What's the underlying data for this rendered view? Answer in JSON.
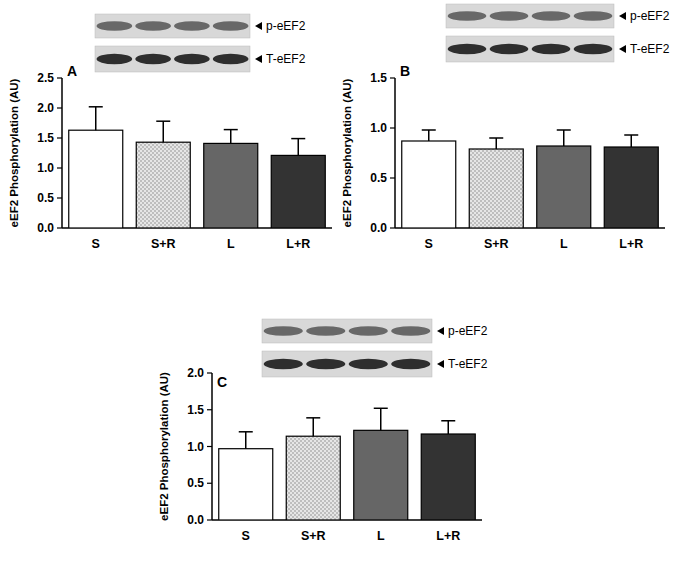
{
  "chart_data": [
    {
      "type": "bar",
      "title": "A",
      "y_label": "eEF2 Phosphorylation (AU)",
      "annotations": [
        "p-eEF2",
        "T-eEF2"
      ],
      "categories": [
        "S",
        "S+R",
        "L",
        "L+R"
      ],
      "values": [
        1.63,
        1.43,
        1.41,
        1.21
      ],
      "errors": [
        0.39,
        0.35,
        0.23,
        0.28
      ],
      "colors": [
        "#ffffff",
        "#dcdcdc",
        "#666666",
        "#333333"
      ],
      "ylim": [
        0,
        2.5
      ],
      "yticks": [
        {
          "value": 0,
          "label": "0.0"
        },
        {
          "value": 0.5,
          "label": "0.5"
        },
        {
          "value": 1,
          "label": "1.0"
        },
        {
          "value": 1.5,
          "label": "1.5"
        },
        {
          "value": 2,
          "label": "2.0"
        },
        {
          "value": 2.5,
          "label": "2.5"
        }
      ]
    },
    {
      "type": "bar",
      "title": "B",
      "y_label": "eEF2 Phosphorylation (AU)",
      "annotations": [
        "p-eEF2",
        "T-eEF2"
      ],
      "categories": [
        "S",
        "S+R",
        "L",
        "L+R"
      ],
      "values": [
        0.87,
        0.79,
        0.82,
        0.81
      ],
      "errors": [
        0.11,
        0.11,
        0.16,
        0.12
      ],
      "colors": [
        "#ffffff",
        "#dcdcdc",
        "#666666",
        "#333333"
      ],
      "ylim": [
        0,
        1.5
      ],
      "yticks": [
        {
          "value": 0,
          "label": "0.0"
        },
        {
          "value": 0.5,
          "label": "0.5"
        },
        {
          "value": 1,
          "label": "1.0"
        },
        {
          "value": 1.5,
          "label": "1.5"
        }
      ]
    },
    {
      "type": "bar",
      "title": "C",
      "y_label": "eEF2 Phosphorylation (AU)",
      "annotations": [
        "p-eEF2",
        "T-eEF2"
      ],
      "categories": [
        "S",
        "S+R",
        "L",
        "L+R"
      ],
      "values": [
        0.97,
        1.14,
        1.22,
        1.17
      ],
      "errors": [
        0.23,
        0.25,
        0.3,
        0.18
      ],
      "colors": [
        "#ffffff",
        "#dcdcdc",
        "#666666",
        "#333333"
      ],
      "ylim": [
        0,
        2.0
      ],
      "yticks": [
        {
          "value": 0,
          "label": "0.0"
        },
        {
          "value": 0.5,
          "label": "0.5"
        },
        {
          "value": 1,
          "label": "1.0"
        },
        {
          "value": 1.5,
          "label": "1.5"
        },
        {
          "value": 2,
          "label": "2.0"
        }
      ]
    }
  ]
}
